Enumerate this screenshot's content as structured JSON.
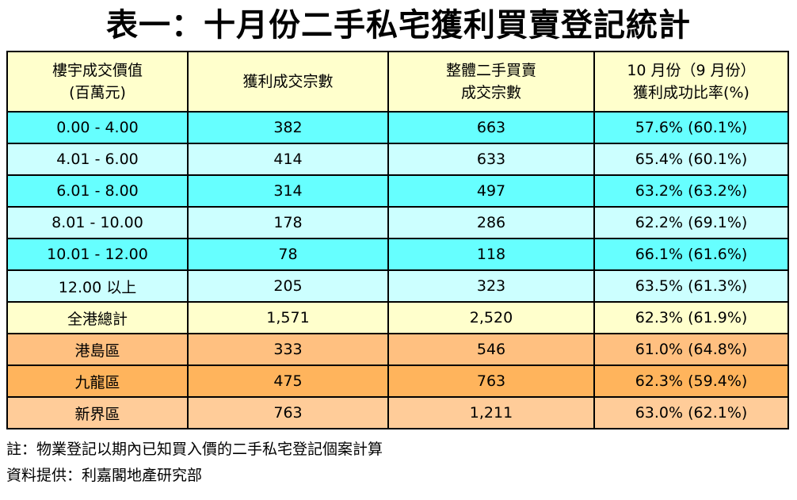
{
  "title": "表一：十月份二手私宅獲利買賣登記統計",
  "table": {
    "header_bg": "#FFFFCC",
    "headers": [
      {
        "line1": "樓宇成交價值",
        "line2": "(百萬元)"
      },
      {
        "line1": "獲利成交宗數",
        "line2": ""
      },
      {
        "line1": "整體二手買賣",
        "line2": "成交宗數"
      },
      {
        "line1": "10 月份（9 月份）",
        "line2": "獲利成功比率(%)"
      }
    ],
    "rows": [
      {
        "category": "0.00 - 4.00",
        "profit": "382",
        "overall": "663",
        "ratio": "57.6% (60.1%)",
        "bg": "#66FFFF"
      },
      {
        "category": "4.01 - 6.00",
        "profit": "414",
        "overall": "633",
        "ratio": "65.4% (60.1%)",
        "bg": "#CCFFFF"
      },
      {
        "category": "6.01 - 8.00",
        "profit": "314",
        "overall": "497",
        "ratio": "63.2% (63.2%)",
        "bg": "#66FFFF"
      },
      {
        "category": "8.01 - 10.00",
        "profit": "178",
        "overall": "286",
        "ratio": "62.2% (69.1%)",
        "bg": "#CCFFFF"
      },
      {
        "category": "10.01 - 12.00",
        "profit": "78",
        "overall": "118",
        "ratio": "66.1% (61.6%)",
        "bg": "#66FFFF"
      },
      {
        "category": "12.00 以上",
        "profit": "205",
        "overall": "323",
        "ratio": "63.5% (61.3%)",
        "bg": "#CCFFFF"
      },
      {
        "category": "全港總計",
        "profit": "1,571",
        "overall": "2,520",
        "ratio": "62.3% (61.9%)",
        "bg": "#FFFFCC"
      },
      {
        "category": "港島區",
        "profit": "333",
        "overall": "546",
        "ratio": "61.0% (64.8%)",
        "bg": "#FFC080"
      },
      {
        "category": "九龍區",
        "profit": "475",
        "overall": "763",
        "ratio": "62.3% (59.4%)",
        "bg": "#FFB45C"
      },
      {
        "category": "新界區",
        "profit": "763",
        "overall": "1,211",
        "ratio": "63.0% (62.1%)",
        "bg": "#FFCC99"
      }
    ]
  },
  "notes": {
    "footnote": "註：物業登記以期內已知買入價的二手私宅登記個案計算",
    "source": "資料提供：利嘉閣地產研究部"
  }
}
